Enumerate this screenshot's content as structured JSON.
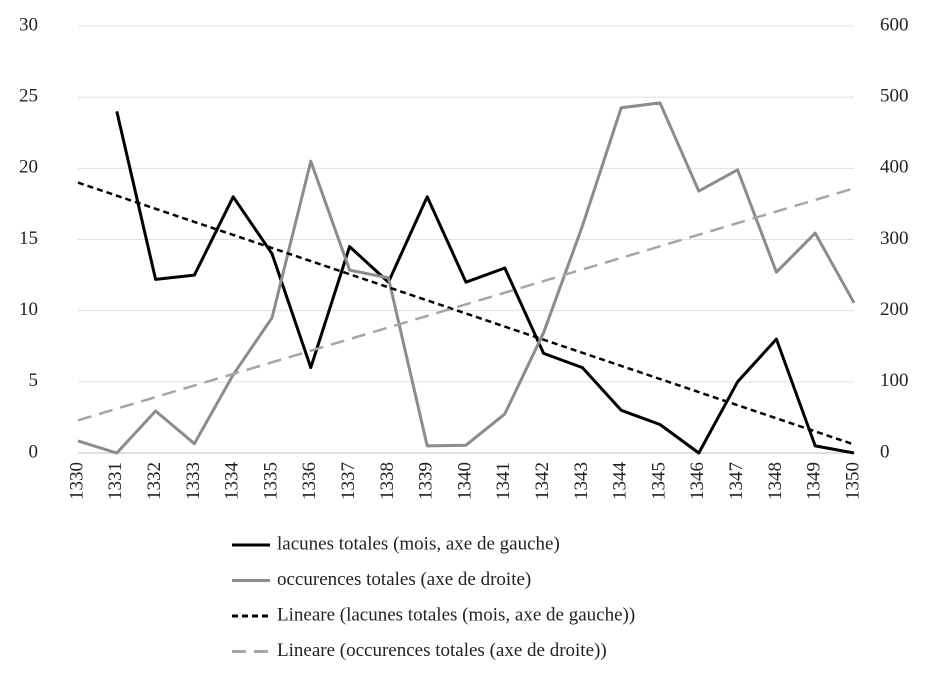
{
  "chart_data": {
    "type": "line",
    "categories": [
      "1330",
      "1331",
      "1332",
      "1333",
      "1334",
      "1335",
      "1336",
      "1337",
      "1338",
      "1339",
      "1340",
      "1341",
      "1342",
      "1343",
      "1344",
      "1345",
      "1346",
      "1347",
      "1348",
      "1349",
      "1350"
    ],
    "series": [
      {
        "name": "lacunes totales (mois, axe de gauche)",
        "color": "#000000",
        "line_style": "solid",
        "axis": "y",
        "values": [
          null,
          24,
          12.2,
          12.5,
          18,
          14,
          6,
          14.5,
          12,
          18,
          12,
          13,
          7,
          6,
          3,
          2,
          0,
          5,
          8,
          0.5,
          0
        ]
      },
      {
        "name": "occurences totales (axe de droite)",
        "color": "#8c8c8c",
        "line_style": "solid",
        "axis": "y2",
        "values": [
          17,
          0,
          59,
          13,
          110,
          190,
          410,
          257,
          246,
          10,
          11,
          55,
          169,
          319,
          485,
          492,
          368,
          398,
          254,
          309,
          211
        ]
      },
      {
        "name": "Lineare (lacunes totales (mois, axe de gauche))",
        "color": "#000000",
        "line_style": "dashed",
        "axis": "y",
        "values": [
          19,
          18.08,
          17.16,
          16.24,
          15.32,
          14.4,
          13.48,
          12.56,
          11.64,
          10.72,
          9.8,
          8.88,
          7.96,
          7.04,
          6.12,
          5.2,
          4.28,
          3.36,
          2.44,
          1.52,
          0.6
        ]
      },
      {
        "name": "Lineare (occurences totales (axe de droite))",
        "color": "#a6a6a6",
        "line_style": "dashed",
        "axis": "y2",
        "values": [
          46,
          62.3,
          78.6,
          94.9,
          111.2,
          127.5,
          143.8,
          160.1,
          176.4,
          192.7,
          209,
          225.3,
          241.6,
          257.9,
          274.2,
          290.5,
          306.8,
          323.1,
          339.4,
          355.7,
          372
        ]
      }
    ],
    "ylim": [
      0,
      30
    ],
    "yticks": [
      0,
      5,
      10,
      15,
      20,
      25,
      30
    ],
    "y2lim": [
      0,
      600
    ],
    "y2ticks": [
      0,
      100,
      200,
      300,
      400,
      500,
      600
    ],
    "grid": true,
    "legend": "bottom"
  }
}
